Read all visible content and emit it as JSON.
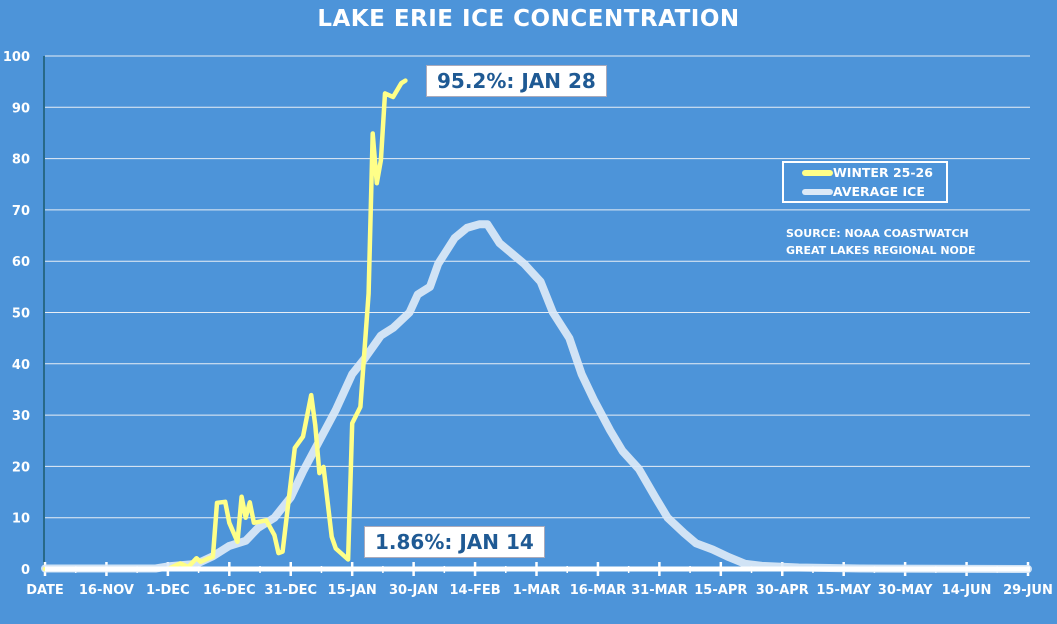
{
  "chart_data": {
    "type": "line",
    "title": "LAKE ERIE ICE CONCENTRATION",
    "xlabel": "",
    "ylabel": "",
    "xlim": [
      "2025-11-01",
      "2026-06-29"
    ],
    "ylim": [
      0,
      100
    ],
    "y_ticks": [
      0,
      10,
      20,
      30,
      40,
      50,
      60,
      70,
      80,
      90,
      100
    ],
    "x_tick_labels": [
      "DATE",
      "16-NOV",
      "1-DEC",
      "16-DEC",
      "31-DEC",
      "15-JAN",
      "30-JAN",
      "14-FEB",
      "1-MAR",
      "16-MAR",
      "31-MAR",
      "15-APR",
      "30-APR",
      "15-MAY",
      "30-MAY",
      "14-JUN",
      "29-JUN"
    ],
    "grid": "horizontal",
    "legend_position": "right",
    "series": [
      {
        "name": "WINTER 25-26",
        "color": "#ffff88",
        "points": [
          [
            "2025-11-01",
            0
          ],
          [
            "2025-12-01",
            0
          ],
          [
            "2025-12-04",
            1.1
          ],
          [
            "2025-12-06",
            0.4
          ],
          [
            "2025-12-08",
            2.1
          ],
          [
            "2025-12-09",
            1.4
          ],
          [
            "2025-12-11",
            2.1
          ],
          [
            "2025-12-12",
            2.4
          ],
          [
            "2025-12-13",
            12.9
          ],
          [
            "2025-12-15",
            13.1
          ],
          [
            "2025-12-16",
            9
          ],
          [
            "2025-12-18",
            5.3
          ],
          [
            "2025-12-19",
            14.1
          ],
          [
            "2025-12-20",
            10
          ],
          [
            "2025-12-21",
            13
          ],
          [
            "2025-12-22",
            9
          ],
          [
            "2025-12-25",
            9.5
          ],
          [
            "2025-12-27",
            6.6
          ],
          [
            "2025-12-28",
            3.1
          ],
          [
            "2025-12-29",
            3.4
          ],
          [
            "2026-01-01",
            23.6
          ],
          [
            "2026-01-03",
            25.8
          ],
          [
            "2026-01-05",
            33.9
          ],
          [
            "2026-01-06",
            28
          ],
          [
            "2026-01-07",
            18.7
          ],
          [
            "2026-01-08",
            19.9
          ],
          [
            "2026-01-10",
            6.3
          ],
          [
            "2026-01-11",
            4
          ],
          [
            "2026-01-14",
            1.86
          ],
          [
            "2026-01-15",
            28.4
          ],
          [
            "2026-01-17",
            31.6
          ],
          [
            "2026-01-19",
            53.7
          ],
          [
            "2026-01-20",
            84.9
          ],
          [
            "2026-01-21",
            75.2
          ],
          [
            "2026-01-22",
            79.7
          ],
          [
            "2026-01-23",
            92.7
          ],
          [
            "2026-01-25",
            92.0
          ],
          [
            "2026-01-27",
            94.7
          ],
          [
            "2026-01-28",
            95.2
          ]
        ]
      },
      {
        "name": "AVERAGE ICE",
        "color": "#dce9f7",
        "points": [
          [
            "2025-11-01",
            0.1
          ],
          [
            "2025-11-28",
            0.1
          ],
          [
            "2025-12-01",
            0.5
          ],
          [
            "2025-12-08",
            1
          ],
          [
            "2025-12-12",
            2.5
          ],
          [
            "2025-12-16",
            4.5
          ],
          [
            "2025-12-20",
            5.5
          ],
          [
            "2025-12-23",
            8
          ],
          [
            "2025-12-27",
            10
          ],
          [
            "2025-12-31",
            14
          ],
          [
            "2026-01-03",
            19
          ],
          [
            "2026-01-07",
            25
          ],
          [
            "2026-01-11",
            31
          ],
          [
            "2026-01-15",
            38
          ],
          [
            "2026-01-18",
            41
          ],
          [
            "2026-01-22",
            45.5
          ],
          [
            "2026-01-25",
            47
          ],
          [
            "2026-01-29",
            50
          ],
          [
            "2026-01-31",
            53.5
          ],
          [
            "2026-02-03",
            55
          ],
          [
            "2026-02-05",
            59.5
          ],
          [
            "2026-02-09",
            64.5
          ],
          [
            "2026-02-12",
            66.5
          ],
          [
            "2026-02-15",
            67.2
          ],
          [
            "2026-02-17",
            67.2
          ],
          [
            "2026-02-20",
            63.5
          ],
          [
            "2026-02-23",
            61.5
          ],
          [
            "2026-02-26",
            59.5
          ],
          [
            "2026-03-02",
            56
          ],
          [
            "2026-03-05",
            50
          ],
          [
            "2026-03-09",
            45
          ],
          [
            "2026-03-12",
            38
          ],
          [
            "2026-03-15",
            33
          ],
          [
            "2026-03-19",
            27
          ],
          [
            "2026-03-22",
            23
          ],
          [
            "2026-03-26",
            19.5
          ],
          [
            "2026-03-30",
            14
          ],
          [
            "2026-04-02",
            10
          ],
          [
            "2026-04-06",
            7
          ],
          [
            "2026-04-09",
            5
          ],
          [
            "2026-04-13",
            3.8
          ],
          [
            "2026-04-17",
            2.3
          ],
          [
            "2026-04-21",
            1
          ],
          [
            "2026-04-25",
            0.6
          ],
          [
            "2026-05-04",
            0.3
          ],
          [
            "2026-05-19",
            0.1
          ],
          [
            "2026-06-29",
            0
          ]
        ]
      }
    ],
    "annotations": [
      {
        "text": "95.2%: JAN 28",
        "date": "2026-01-28",
        "value": 95.2
      },
      {
        "text": "1.86%: JAN 14",
        "date": "2026-01-14",
        "value": 1.86
      }
    ],
    "source": [
      "SOURCE: NOAA COASTWATCH",
      "GREAT LAKES REGIONAL NODE"
    ]
  }
}
